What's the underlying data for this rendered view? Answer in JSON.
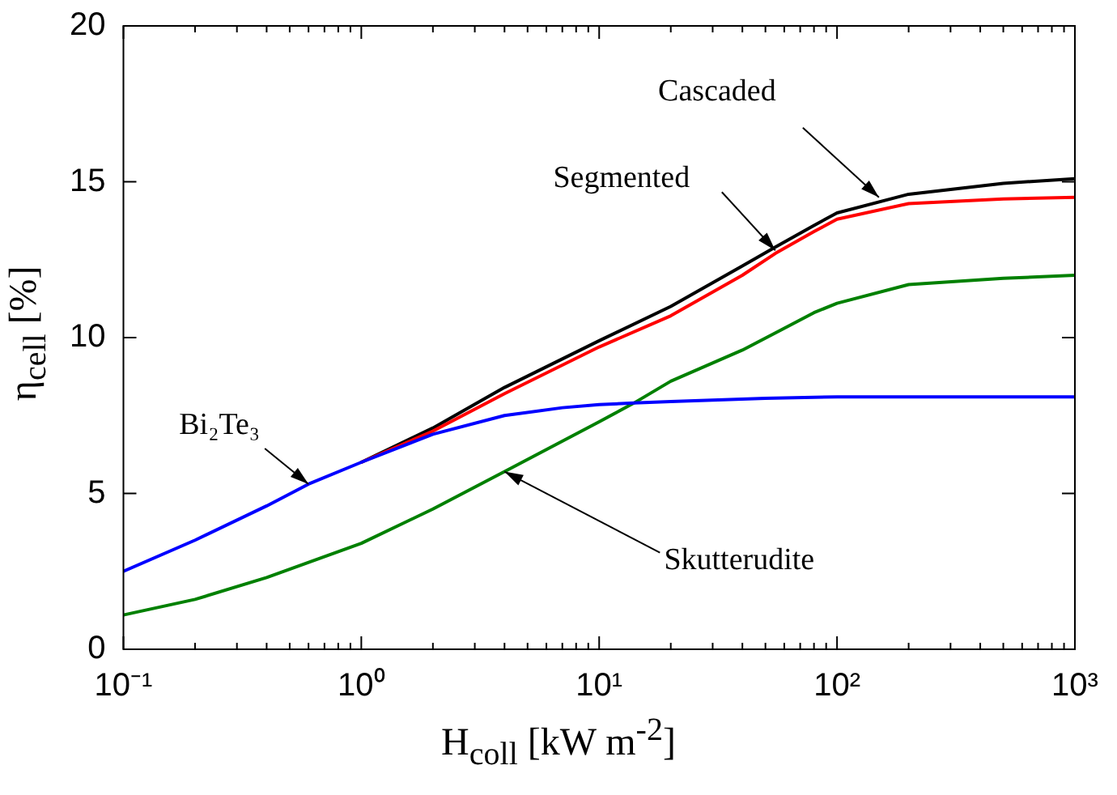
{
  "chart_data": {
    "type": "line",
    "xlabel": "H$_{coll}$ [kW m$^{-2}$]",
    "ylabel": "η$_{cell}$ [%]",
    "log": "x",
    "xlim": [
      0.1,
      1000
    ],
    "ylim": [
      0,
      20
    ],
    "xticks": [
      {
        "value": 0.1,
        "label": "10⁻¹"
      },
      {
        "value": 0.2,
        "label": null
      },
      {
        "value": 0.3,
        "label": null
      },
      {
        "value": 0.4,
        "label": null
      },
      {
        "value": 0.5,
        "label": null
      },
      {
        "value": 0.6,
        "label": null
      },
      {
        "value": 0.7,
        "label": null
      },
      {
        "value": 0.8,
        "label": null
      },
      {
        "value": 0.9,
        "label": null
      },
      {
        "value": 1,
        "label": "10⁰"
      },
      {
        "value": 2,
        "label": null
      },
      {
        "value": 3,
        "label": null
      },
      {
        "value": 4,
        "label": null
      },
      {
        "value": 5,
        "label": null
      },
      {
        "value": 6,
        "label": null
      },
      {
        "value": 7,
        "label": null
      },
      {
        "value": 8,
        "label": null
      },
      {
        "value": 9,
        "label": null
      },
      {
        "value": 10,
        "label": "10¹"
      },
      {
        "value": 20,
        "label": null
      },
      {
        "value": 30,
        "label": null
      },
      {
        "value": 40,
        "label": null
      },
      {
        "value": 50,
        "label": null
      },
      {
        "value": 60,
        "label": null
      },
      {
        "value": 70,
        "label": null
      },
      {
        "value": 80,
        "label": null
      },
      {
        "value": 90,
        "label": null
      },
      {
        "value": 100,
        "label": "10²"
      },
      {
        "value": 200,
        "label": null
      },
      {
        "value": 300,
        "label": null
      },
      {
        "value": 400,
        "label": null
      },
      {
        "value": 500,
        "label": null
      },
      {
        "value": 600,
        "label": null
      },
      {
        "value": 700,
        "label": null
      },
      {
        "value": 800,
        "label": null
      },
      {
        "value": 900,
        "label": null
      },
      {
        "value": 1000,
        "label": "10³"
      }
    ],
    "yticks": [
      0,
      5,
      10,
      15,
      20
    ],
    "grid": false,
    "legend": false,
    "marker": "none",
    "line_style": "solid",
    "series": [
      {
        "color": "#0000ff",
        "x": [
          0.1,
          0.2,
          0.4,
          0.6,
          1,
          2,
          4,
          7,
          10,
          14,
          20,
          50,
          100,
          300,
          1000
        ],
        "values": [
          2.5,
          3.5,
          4.6,
          5.3,
          6.0,
          6.9,
          7.5,
          7.75,
          7.85,
          7.9,
          7.95,
          8.05,
          8.1,
          8.1,
          8.1
        ]
      },
      {
        "color": "#008000",
        "x": [
          0.1,
          0.2,
          0.4,
          1,
          2,
          4,
          10,
          14,
          20,
          40,
          60,
          80,
          100,
          200,
          500,
          1000
        ],
        "values": [
          1.1,
          1.6,
          2.3,
          3.4,
          4.5,
          5.7,
          7.3,
          7.9,
          8.6,
          9.6,
          10.3,
          10.8,
          11.1,
          11.7,
          11.9,
          12.0
        ]
      },
      {
        "color": "#ff0000",
        "x": [
          1,
          2,
          4,
          10,
          20,
          40,
          55,
          80,
          100,
          200,
          500,
          1000
        ],
        "values": [
          6.0,
          7.0,
          8.2,
          9.7,
          10.7,
          12.0,
          12.7,
          13.4,
          13.8,
          14.3,
          14.45,
          14.5
        ]
      },
      {
        "color": "#000000",
        "x": [
          1,
          2,
          4,
          10,
          20,
          40,
          55,
          80,
          100,
          200,
          500,
          1000
        ],
        "values": [
          6.0,
          7.1,
          8.4,
          9.9,
          11.0,
          12.3,
          12.9,
          13.6,
          14.0,
          14.6,
          14.95,
          15.1
        ]
      }
    ],
    "annotations": [
      {
        "text": "Cascaded",
        "x": 150,
        "y": 14.5
      },
      {
        "text": "Segmented",
        "x": 55,
        "y": 12.8
      },
      {
        "text": "Bi₂Te₃",
        "x": 0.6,
        "y": 5.3
      },
      {
        "text": "Skutterudite",
        "x": 4,
        "y": 5.7
      }
    ]
  }
}
